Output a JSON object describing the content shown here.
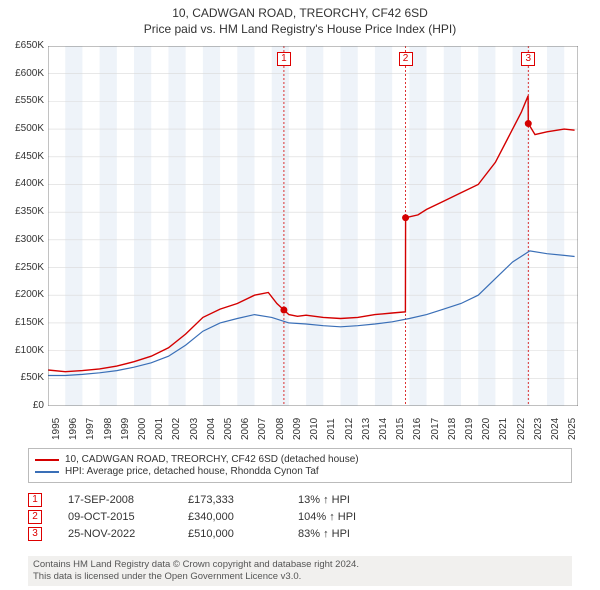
{
  "title1": "10, CADWGAN ROAD, TREORCHY, CF42 6SD",
  "title2": "Price paid vs. HM Land Registry's House Price Index (HPI)",
  "chart": {
    "type": "line",
    "background_color": "#ffffff",
    "alt_band_color": "#eef3f9",
    "grid_color": "#d9d9d9",
    "axis_color": "#666666",
    "label_fontsize": 10,
    "xlim": [
      1995,
      2025.8
    ],
    "ylim": [
      0,
      650000
    ],
    "ytick_step": 50000,
    "ytick_labels": [
      "£0",
      "£50K",
      "£100K",
      "£150K",
      "£200K",
      "£250K",
      "£300K",
      "£350K",
      "£400K",
      "£450K",
      "£500K",
      "£550K",
      "£600K",
      "£650K"
    ],
    "xticks": [
      1995,
      1996,
      1997,
      1998,
      1999,
      2000,
      2001,
      2002,
      2003,
      2004,
      2005,
      2006,
      2007,
      2008,
      2009,
      2010,
      2011,
      2012,
      2013,
      2014,
      2015,
      2016,
      2017,
      2018,
      2019,
      2020,
      2021,
      2022,
      2023,
      2024,
      2025
    ],
    "series": [
      {
        "name": "property",
        "label": "10, CADWGAN ROAD, TREORCHY, CF42 6SD (detached house)",
        "color": "#d40000",
        "line_width": 1.4,
        "data": [
          [
            1995.0,
            65000
          ],
          [
            1996.0,
            62000
          ],
          [
            1997.0,
            64000
          ],
          [
            1998.0,
            67000
          ],
          [
            1999.0,
            72000
          ],
          [
            2000.0,
            80000
          ],
          [
            2001.0,
            90000
          ],
          [
            2002.0,
            105000
          ],
          [
            2003.0,
            130000
          ],
          [
            2004.0,
            160000
          ],
          [
            2005.0,
            175000
          ],
          [
            2006.0,
            185000
          ],
          [
            2007.0,
            200000
          ],
          [
            2007.8,
            205000
          ],
          [
            2008.3,
            185000
          ],
          [
            2008.71,
            173333
          ],
          [
            2009.0,
            165000
          ],
          [
            2009.5,
            162000
          ],
          [
            2010.0,
            164000
          ],
          [
            2011.0,
            160000
          ],
          [
            2012.0,
            158000
          ],
          [
            2013.0,
            160000
          ],
          [
            2014.0,
            165000
          ],
          [
            2015.0,
            168000
          ],
          [
            2015.77,
            170000
          ],
          [
            2015.78,
            340000
          ],
          [
            2016.5,
            345000
          ],
          [
            2017.0,
            355000
          ],
          [
            2018.0,
            370000
          ],
          [
            2019.0,
            385000
          ],
          [
            2020.0,
            400000
          ],
          [
            2021.0,
            440000
          ],
          [
            2022.0,
            500000
          ],
          [
            2022.5,
            530000
          ],
          [
            2022.9,
            560000
          ],
          [
            2022.91,
            510000
          ],
          [
            2023.3,
            490000
          ],
          [
            2024.0,
            495000
          ],
          [
            2025.0,
            500000
          ],
          [
            2025.6,
            498000
          ]
        ]
      },
      {
        "name": "hpi",
        "label": "HPI: Average price, detached house, Rhondda Cynon Taf",
        "color": "#3a6fb7",
        "line_width": 1.2,
        "data": [
          [
            1995.0,
            55000
          ],
          [
            1996.0,
            55000
          ],
          [
            1997.0,
            57000
          ],
          [
            1998.0,
            60000
          ],
          [
            1999.0,
            64000
          ],
          [
            2000.0,
            70000
          ],
          [
            2001.0,
            78000
          ],
          [
            2002.0,
            90000
          ],
          [
            2003.0,
            110000
          ],
          [
            2004.0,
            135000
          ],
          [
            2005.0,
            150000
          ],
          [
            2006.0,
            158000
          ],
          [
            2007.0,
            165000
          ],
          [
            2008.0,
            160000
          ],
          [
            2009.0,
            150000
          ],
          [
            2010.0,
            148000
          ],
          [
            2011.0,
            145000
          ],
          [
            2012.0,
            143000
          ],
          [
            2013.0,
            145000
          ],
          [
            2014.0,
            148000
          ],
          [
            2015.0,
            152000
          ],
          [
            2016.0,
            158000
          ],
          [
            2017.0,
            165000
          ],
          [
            2018.0,
            175000
          ],
          [
            2019.0,
            185000
          ],
          [
            2020.0,
            200000
          ],
          [
            2021.0,
            230000
          ],
          [
            2022.0,
            260000
          ],
          [
            2023.0,
            280000
          ],
          [
            2024.0,
            275000
          ],
          [
            2025.0,
            272000
          ],
          [
            2025.6,
            270000
          ]
        ]
      }
    ],
    "sale_markers": [
      {
        "n": "1",
        "x": 2008.71,
        "y": 173333,
        "vline_color": "#d40000"
      },
      {
        "n": "2",
        "x": 2015.78,
        "y": 340000,
        "vline_color": "#d40000"
      },
      {
        "n": "3",
        "x": 2022.91,
        "y": 510000,
        "vline_color": "#d40000"
      }
    ],
    "marker_dot_radius": 3.5
  },
  "legend": {
    "items": [
      {
        "color": "#d40000",
        "label": "10, CADWGAN ROAD, TREORCHY, CF42 6SD (detached house)"
      },
      {
        "color": "#3a6fb7",
        "label": "HPI: Average price, detached house, Rhondda Cynon Taf"
      }
    ]
  },
  "sales": [
    {
      "n": "1",
      "date": "17-SEP-2008",
      "price": "£173,333",
      "pct": "13% ↑ HPI"
    },
    {
      "n": "2",
      "date": "09-OCT-2015",
      "price": "£340,000",
      "pct": "104% ↑ HPI"
    },
    {
      "n": "3",
      "date": "25-NOV-2022",
      "price": "£510,000",
      "pct": "83% ↑ HPI"
    }
  ],
  "attribution": {
    "line1": "Contains HM Land Registry data © Crown copyright and database right 2024.",
    "line2": "This data is licensed under the Open Government Licence v3.0."
  }
}
